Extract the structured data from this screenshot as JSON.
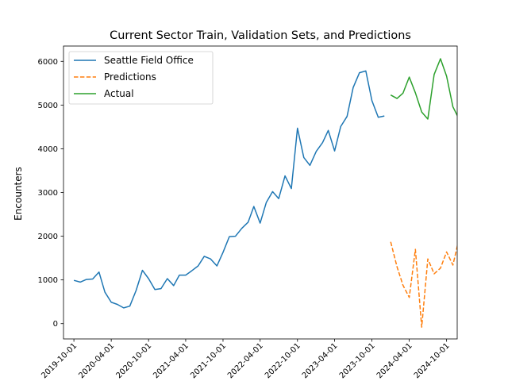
{
  "chart_data": {
    "type": "line",
    "title": "Current Sector Train, Validation Sets, and Predictions",
    "xlabel": "",
    "ylabel": "Encounters",
    "ylim": [
      -350,
      6350
    ],
    "xlim": [
      "2019-08-11",
      "2024-11-22"
    ],
    "yticks": [
      0,
      1000,
      2000,
      3000,
      4000,
      5000,
      6000
    ],
    "xticks": [
      {
        "date": "2019-10-01",
        "label": "2019-10-01"
      },
      {
        "date": "2020-04-01",
        "label": "2020-04-01"
      },
      {
        "date": "2020-10-01",
        "label": "2020-10-01"
      },
      {
        "date": "2021-04-01",
        "label": "2021-04-01"
      },
      {
        "date": "2021-10-01",
        "label": "2021-10-01"
      },
      {
        "date": "2022-04-01",
        "label": "2022-04-01"
      },
      {
        "date": "2022-10-01",
        "label": "2022-10-01"
      },
      {
        "date": "2023-04-01",
        "label": "2023-04-01"
      },
      {
        "date": "2023-10-01",
        "label": "2023-10-01"
      },
      {
        "date": "2024-04-01",
        "label": "2024-04-01"
      },
      {
        "date": "2024-10-01",
        "label": "2024-10-01"
      }
    ],
    "legend_position": "top-left",
    "grid": false,
    "series": [
      {
        "name": "Seattle Field Office",
        "color": "#1f77b4",
        "style": "solid",
        "start": "2019-10-01",
        "values": [
          990,
          950,
          1010,
          1020,
          1180,
          720,
          490,
          440,
          360,
          400,
          760,
          1220,
          1030,
          780,
          800,
          1030,
          870,
          1110,
          1110,
          1210,
          1320,
          1540,
          1480,
          1320,
          1630,
          1990,
          2000,
          2180,
          2320,
          2680,
          2300,
          2770,
          3020,
          2860,
          3380,
          3090,
          4470,
          3800,
          3620,
          3940,
          4140,
          4420,
          3950,
          4510,
          4740,
          5400,
          5740,
          5780,
          5100,
          4720,
          4750
        ]
      },
      {
        "name": "Predictions",
        "color": "#ff7f0e",
        "style": "dashed",
        "start": "2024-01-01",
        "values": [
          1870,
          1300,
          880,
          600,
          1700,
          -80,
          1480,
          1140,
          1270,
          1640,
          1340,
          1940
        ]
      },
      {
        "name": "Actual",
        "color": "#2ca02c",
        "style": "solid",
        "start": "2024-01-01",
        "values": [
          5230,
          5150,
          5270,
          5640,
          5280,
          4840,
          4680,
          5700,
          6060,
          5660,
          4960,
          4680
        ]
      }
    ]
  }
}
